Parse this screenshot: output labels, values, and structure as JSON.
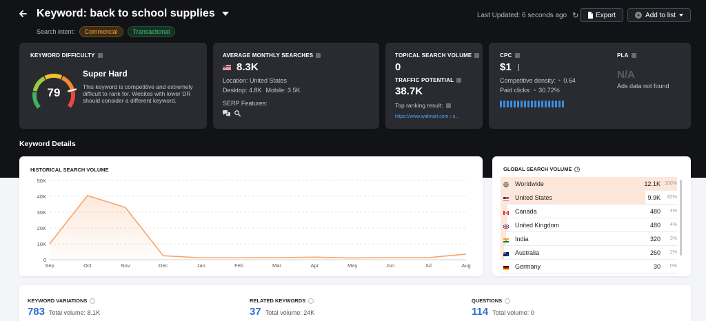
{
  "header": {
    "title": "Keyword: back to school supplies",
    "search_intent_label": "Search intent:",
    "intents": [
      "Commercial",
      "Transactional"
    ],
    "last_updated": "Last Updated: 6 seconds ago",
    "export_label": "Export",
    "add_to_list_label": "Add to list"
  },
  "keyword_difficulty": {
    "label": "KEYWORD DIFFICULTY",
    "value": "79",
    "value_fraction": 0.79,
    "status": "Super Hard",
    "description": "This keyword is competitive and extremely difficult to rank for. Webites with lower DR should consider a different keyword."
  },
  "avg_monthly_searches": {
    "label": "AVERAGE MONTHLY SEARCHES",
    "value": "8.3K",
    "location": "Location: United States",
    "desktop": "Desktop: 4.8K",
    "mobile": "Mobile: 3.5K",
    "serp_label": "SERP Features:"
  },
  "topical": {
    "label": "TOPICAL SEARCH VOLUME",
    "value": "0",
    "traffic_label": "TRAFFIC POTENTIAL",
    "traffic_value": "38.7K",
    "top_ranking_label": "Top ranking result:",
    "top_ranking_url": "https://www.walmart.com › s..."
  },
  "cpc": {
    "label": "CPC",
    "value": "$1",
    "competitive_density_label": "Competitive density:",
    "competitive_density_value": "0.64",
    "paid_clicks_label": "Paid clicks:",
    "paid_clicks_value": "30.72%",
    "bar_count": 19
  },
  "pla": {
    "label": "PLA",
    "value": "N/A",
    "note": "Ads data not found"
  },
  "section_title": "Keyword Details",
  "historical": {
    "label": "HISTORICAL SEARCH VOLUME"
  },
  "chart_data": {
    "type": "area",
    "title": "HISTORICAL SEARCH VOLUME",
    "categories": [
      "Sep",
      "Oct",
      "Nov",
      "Dec",
      "Jan",
      "Feb",
      "Mar",
      "Apr",
      "May",
      "Jun",
      "Jul",
      "Aug"
    ],
    "values": [
      10000,
      40500,
      33000,
      2500,
      1200,
      1200,
      1300,
      1600,
      1100,
      1300,
      1300,
      3500
    ],
    "y_ticks": [
      "0",
      "10K",
      "20K",
      "30K",
      "40K",
      "50K"
    ],
    "ylim": [
      0,
      50000
    ],
    "grid": true,
    "color": "#f5a46b"
  },
  "global": {
    "label": "GLOBAL SEARCH VOLUME",
    "rows": [
      {
        "name": "Worldwide",
        "value": "12.1K",
        "pct": "100%",
        "share": 1.0,
        "flag": "globe"
      },
      {
        "name": "United States",
        "value": "9.9K",
        "pct": "82%",
        "share": 0.82,
        "flag": "us"
      },
      {
        "name": "Canada",
        "value": "480",
        "pct": "4%",
        "share": 0.04,
        "flag": "ca"
      },
      {
        "name": "United Kingdom",
        "value": "480",
        "pct": "4%",
        "share": 0.04,
        "flag": "uk"
      },
      {
        "name": "India",
        "value": "320",
        "pct": "3%",
        "share": 0.03,
        "flag": "in"
      },
      {
        "name": "Australia",
        "value": "260",
        "pct": "2%",
        "share": 0.02,
        "flag": "au"
      },
      {
        "name": "Germany",
        "value": "30",
        "pct": "0%",
        "share": 0.0,
        "flag": "de"
      }
    ]
  },
  "bottom": {
    "variations": {
      "label": "KEYWORD VARIATIONS",
      "value": "783",
      "total": "Total volume: 8.1K"
    },
    "related": {
      "label": "RELATED KEYWORDS",
      "value": "37",
      "total": "Total volume: 24K"
    },
    "questions": {
      "label": "QUESTIONS",
      "value": "114",
      "total": "Total volume: 0"
    }
  },
  "colors": {
    "accent_blue": "#2f6fd1",
    "chart_orange": "#f5a46b",
    "commercial": "#f3a03b",
    "transactional": "#45c27a"
  }
}
